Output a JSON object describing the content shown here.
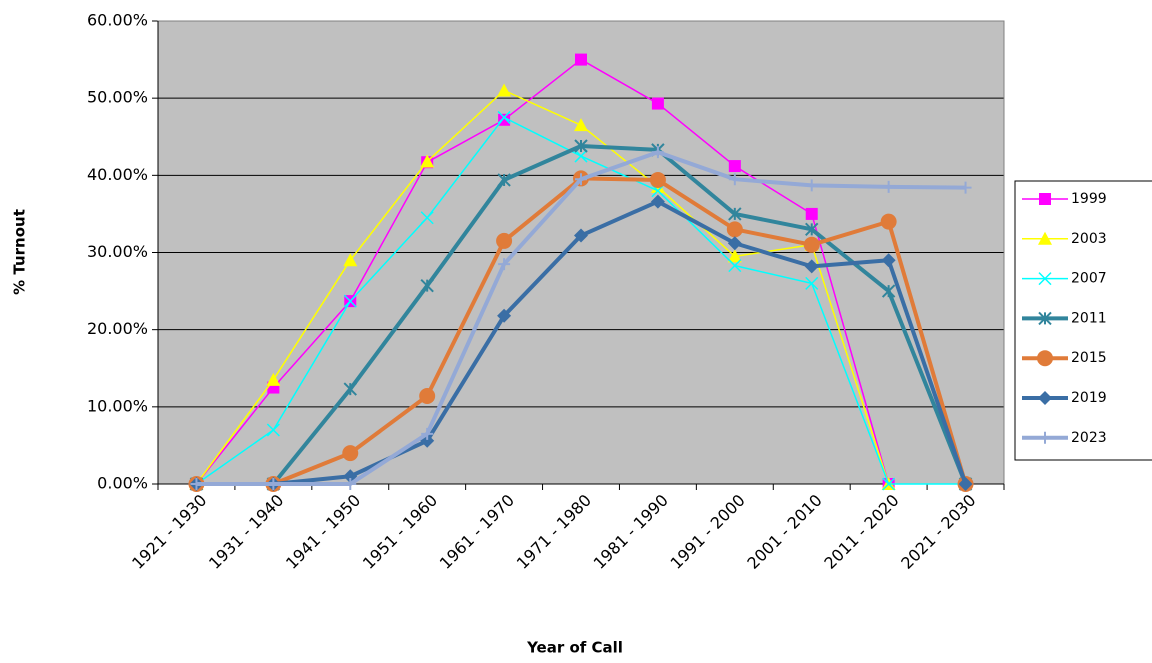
{
  "chart_data": {
    "type": "line",
    "x_label": "Year of Call",
    "y_label": "% Turnout",
    "categories": [
      "1921 - 1930",
      "1931 - 1940",
      "1941 - 1950",
      "1951 - 1960",
      "1961 - 1970",
      "1971 - 1980",
      "1981 - 1990",
      "1991 - 2000",
      "2001 - 2010",
      "2011 - 2020",
      "2021 - 2030"
    ],
    "ylim": [
      0,
      60
    ],
    "yticks": [
      {
        "value": 0,
        "label": "0.00%"
      },
      {
        "value": 10,
        "label": "10.00%"
      },
      {
        "value": 20,
        "label": "20.00%"
      },
      {
        "value": 30,
        "label": "30.00%"
      },
      {
        "value": 40,
        "label": "40.00%"
      },
      {
        "value": 50,
        "label": "50.00%"
      },
      {
        "value": 60,
        "label": "60.00%"
      }
    ],
    "grid": true,
    "plot_background": "#c0c0c0",
    "legend": "right",
    "series": [
      {
        "name": "1999",
        "color": "#ff00ff",
        "marker": "square",
        "line_width": 1.5,
        "values": [
          0,
          12.5,
          23.7,
          41.7,
          47.2,
          55,
          49.3,
          41.2,
          35,
          0,
          null
        ]
      },
      {
        "name": "2003",
        "color": "#ffff00",
        "marker": "triangle",
        "line_width": 1.5,
        "values": [
          0,
          13.5,
          29,
          41.8,
          51,
          46.5,
          38.5,
          29.5,
          31,
          0,
          null
        ]
      },
      {
        "name": "2007",
        "color": "#00ffff",
        "marker": "x",
        "line_width": 1.5,
        "values": [
          0,
          7,
          23.7,
          34.5,
          47.5,
          42.5,
          38,
          28.3,
          26,
          0,
          0
        ]
      },
      {
        "name": "2011",
        "color": "#31859c",
        "marker": "star",
        "line_width": 4,
        "values": [
          0,
          0,
          12.3,
          25.7,
          39.4,
          43.8,
          43.3,
          35,
          33,
          25,
          0
        ]
      },
      {
        "name": "2015",
        "color": "#e07b39",
        "marker": "circle",
        "line_width": 4,
        "values": [
          0,
          0,
          4,
          11.4,
          31.5,
          39.6,
          39.4,
          33,
          31,
          34,
          0
        ]
      },
      {
        "name": "2019",
        "color": "#3a6ea5",
        "marker": "diamond",
        "line_width": 4,
        "values": [
          0,
          0,
          1,
          5.6,
          21.8,
          32.2,
          36.6,
          31.2,
          28.2,
          29,
          0
        ]
      },
      {
        "name": "2023",
        "color": "#94a9d6",
        "marker": "plus",
        "line_width": 4,
        "values": [
          0,
          0,
          0,
          6.5,
          28.5,
          39.5,
          43,
          39.5,
          38.7,
          38.5,
          38.4
        ]
      }
    ]
  }
}
